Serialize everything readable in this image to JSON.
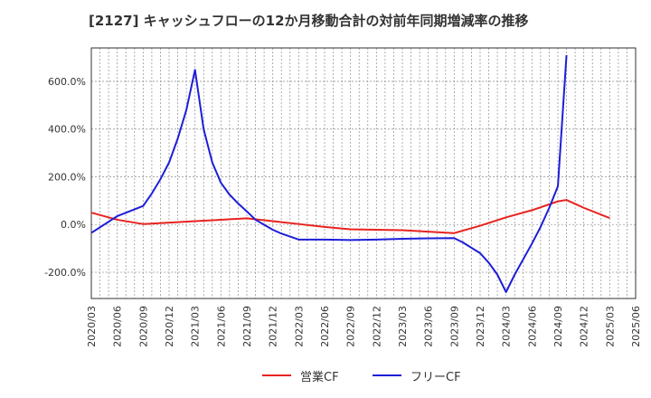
{
  "chart_data": {
    "type": "line",
    "title": "[2127]  キャッシュフローの12か月移動合計の対前年同期増減率の推移",
    "xlabel": "",
    "ylabel": "",
    "ylim": [
      -310,
      740
    ],
    "y_ticks": [
      600,
      400,
      200,
      0,
      -200
    ],
    "y_tick_labels": [
      "600.0%",
      "400.0%",
      "200.0%",
      "0.0%",
      "-200.0%"
    ],
    "x_range": [
      "2020/03",
      "2025/06"
    ],
    "x_tick_labels": [
      "2020/03",
      "2020/06",
      "2020/09",
      "2020/12",
      "2021/03",
      "2021/06",
      "2021/09",
      "2021/12",
      "2022/03",
      "2022/06",
      "2022/09",
      "2022/12",
      "2023/03",
      "2023/06",
      "2023/09",
      "2023/12",
      "2024/03",
      "2024/06",
      "2024/09",
      "2024/12",
      "2025/03",
      "2025/06"
    ],
    "grid": true,
    "legend_position": "bottom-center",
    "series": [
      {
        "name": "営業CF",
        "color": "#e8231f",
        "points": [
          {
            "x": "2020/03",
            "y": 50
          },
          {
            "x": "2020/06",
            "y": 20
          },
          {
            "x": "2020/09",
            "y": 2
          },
          {
            "x": "2020/12",
            "y": 8
          },
          {
            "x": "2021/03",
            "y": 14
          },
          {
            "x": "2021/06",
            "y": 20
          },
          {
            "x": "2021/09",
            "y": 26
          },
          {
            "x": "2021/12",
            "y": 14
          },
          {
            "x": "2022/03",
            "y": 2
          },
          {
            "x": "2022/06",
            "y": -10
          },
          {
            "x": "2022/09",
            "y": -20
          },
          {
            "x": "2022/12",
            "y": -22
          },
          {
            "x": "2023/03",
            "y": -24
          },
          {
            "x": "2023/06",
            "y": -30
          },
          {
            "x": "2023/09",
            "y": -36
          },
          {
            "x": "2023/12",
            "y": -5
          },
          {
            "x": "2024/03",
            "y": 30
          },
          {
            "x": "2024/06",
            "y": 60
          },
          {
            "x": "2024/09",
            "y": 97
          },
          {
            "x": "2024/10",
            "y": 103
          },
          {
            "x": "2024/12",
            "y": 70
          },
          {
            "x": "2025/03",
            "y": 27
          }
        ]
      },
      {
        "name": "フリーCF",
        "color": "#1e1ed8",
        "points": [
          {
            "x": "2020/03",
            "y": -35
          },
          {
            "x": "2020/06",
            "y": 35
          },
          {
            "x": "2020/09",
            "y": 78
          },
          {
            "x": "2020/10",
            "y": 130
          },
          {
            "x": "2020/11",
            "y": 190
          },
          {
            "x": "2020/12",
            "y": 260
          },
          {
            "x": "2021/01",
            "y": 360
          },
          {
            "x": "2021/02",
            "y": 480
          },
          {
            "x": "2021/03",
            "y": 648
          },
          {
            "x": "2021/04",
            "y": 400
          },
          {
            "x": "2021/05",
            "y": 260
          },
          {
            "x": "2021/06",
            "y": 175
          },
          {
            "x": "2021/07",
            "y": 125
          },
          {
            "x": "2021/08",
            "y": 88
          },
          {
            "x": "2021/09",
            "y": 55
          },
          {
            "x": "2021/10",
            "y": 20
          },
          {
            "x": "2021/12",
            "y": -22
          },
          {
            "x": "2022/01",
            "y": -38
          },
          {
            "x": "2022/03",
            "y": -63
          },
          {
            "x": "2022/06",
            "y": -63
          },
          {
            "x": "2022/09",
            "y": -65
          },
          {
            "x": "2022/12",
            "y": -63
          },
          {
            "x": "2023/03",
            "y": -60
          },
          {
            "x": "2023/06",
            "y": -58
          },
          {
            "x": "2023/09",
            "y": -57
          },
          {
            "x": "2023/10",
            "y": -75
          },
          {
            "x": "2023/12",
            "y": -120
          },
          {
            "x": "2024/01",
            "y": -160
          },
          {
            "x": "2024/02",
            "y": -210
          },
          {
            "x": "2024/03",
            "y": -283
          },
          {
            "x": "2024/04",
            "y": -210
          },
          {
            "x": "2024/06",
            "y": -80
          },
          {
            "x": "2024/07",
            "y": -10
          },
          {
            "x": "2024/08",
            "y": 70
          },
          {
            "x": "2024/09",
            "y": 160
          },
          {
            "x": "2024/10",
            "y": 710
          }
        ]
      }
    ]
  }
}
